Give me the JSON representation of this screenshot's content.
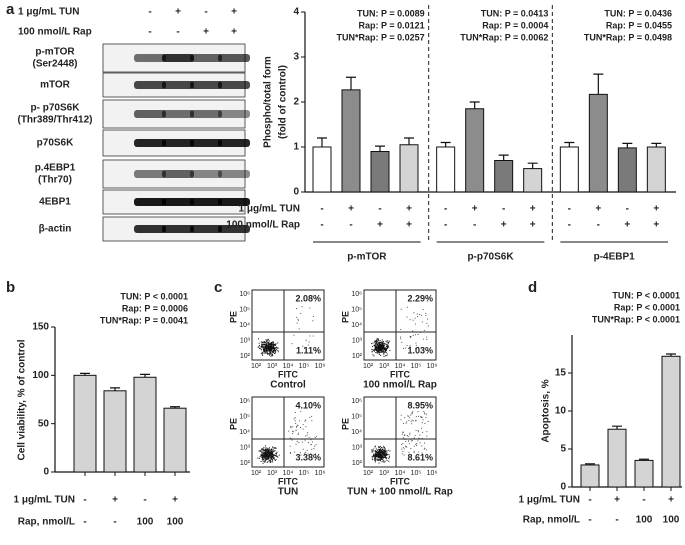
{
  "blot": {
    "label": "a",
    "conditions": [
      {
        "label": "1 μg/mL TUN",
        "marks": [
          "-",
          "+",
          "-",
          "+"
        ]
      },
      {
        "label": "100 nmol/L Rap",
        "marks": [
          "-",
          "-",
          "+",
          "+"
        ]
      }
    ],
    "rows": [
      [
        "p-mTOR",
        "(Ser2448)"
      ],
      [
        "mTOR"
      ],
      [
        "p-  p70S6K",
        "(Thr389/Thr412)"
      ],
      [
        "p70S6K"
      ],
      [
        "p.4EBP1",
        "(Thr70)"
      ],
      [
        "4EBP1"
      ],
      [
        "β-actin"
      ]
    ]
  },
  "flow": {
    "label": "c",
    "x_label": "FITC",
    "y_label": "PE",
    "ticks": [
      "10²",
      "10³",
      "10⁴",
      "10⁵",
      "10⁶"
    ],
    "plots": [
      {
        "caption": "Control",
        "upper_right": "2.08%",
        "lower_right": "1.11%"
      },
      {
        "caption": "100 nmol/L Rap",
        "upper_right": "2.29%",
        "lower_right": "1.03%"
      },
      {
        "caption": "TUN",
        "upper_right": "4.10%",
        "lower_right": "3.38%"
      },
      {
        "caption": "TUN + 100 nmol/L Rap",
        "upper_right": "8.95%",
        "lower_right": "8.61%"
      }
    ]
  },
  "chart_data": [
    {
      "type": "grouped_bar",
      "ylabel": [
        "Phospho/total form",
        "(fold of control)"
      ],
      "ylim": [
        0,
        4
      ],
      "yticks": [
        0,
        1,
        2,
        3,
        4
      ],
      "categories": [
        "p-mTOR",
        "p-p70S6K",
        "p-4EBP1"
      ],
      "series": [
        {
          "color": "#ffffff",
          "values": [
            1.0,
            1.0,
            1.0
          ],
          "errors": [
            0.2,
            0.1,
            0.1
          ]
        },
        {
          "color": "#8c8c8c",
          "values": [
            2.27,
            1.85,
            2.17
          ],
          "errors": [
            0.28,
            0.15,
            0.45
          ]
        },
        {
          "color": "#7a7a7a",
          "values": [
            0.9,
            0.7,
            0.98
          ],
          "errors": [
            0.12,
            0.12,
            0.1
          ]
        },
        {
          "color": "#d4d4d4",
          "values": [
            1.05,
            0.52,
            1.0
          ],
          "errors": [
            0.15,
            0.12,
            0.08
          ]
        }
      ],
      "conditions": [
        {
          "label": "1 μg/mL TUN",
          "marks": [
            "-",
            "+",
            "-",
            "+"
          ]
        },
        {
          "label": "100 nmol/L Rap",
          "marks": [
            "-",
            "-",
            "+",
            "+"
          ]
        }
      ],
      "annotations": [
        [
          "TUN: P = 0.0089",
          "Rap: P = 0.0121",
          "TUN*Rap: P = 0.0257"
        ],
        [
          "TUN: P = 0.0413",
          "Rap: P = 0.0004",
          "TUN*Rap: P = 0.0062"
        ],
        [
          "TUN: P = 0.0436",
          "Rap: P = 0.0455",
          "TUN*Rap: P = 0.0498"
        ]
      ]
    },
    {
      "type": "bar",
      "panel": "b",
      "ylabel": [
        "Cell viability, % of control"
      ],
      "ylim": [
        0,
        150
      ],
      "yticks": [
        0,
        50,
        100,
        150
      ],
      "color": "#d4d4d4",
      "values": [
        100,
        84,
        98,
        66
      ],
      "errors": [
        2,
        3,
        3,
        1.5
      ],
      "conditions": [
        {
          "label": "1 μg/mL TUN",
          "marks": [
            "-",
            "+",
            "-",
            "+"
          ]
        },
        {
          "label": "Rap, nmol/L",
          "marks": [
            "-",
            "-",
            "100",
            "100"
          ]
        }
      ],
      "annotations": [
        "TUN: P < 0.0001",
        "Rap: P = 0.0006",
        "TUN*Rap: P = 0.0041"
      ]
    },
    {
      "type": "bar",
      "panel": "d",
      "ylabel": [
        "Apoptosis, %"
      ],
      "ylim": [
        0,
        20
      ],
      "yticks": [
        0,
        5,
        10,
        15
      ],
      "color": "#d4d4d4",
      "values": [
        2.9,
        7.6,
        3.5,
        17.2
      ],
      "errors": [
        0.15,
        0.4,
        0.15,
        0.3
      ],
      "conditions": [
        {
          "label": "1 μg/mL TUN",
          "marks": [
            "-",
            "+",
            "-",
            "+"
          ]
        },
        {
          "label": "Rap, nmol/L",
          "marks": [
            "-",
            "-",
            "100",
            "100"
          ]
        }
      ],
      "annotations": [
        "TUN: P < 0.0001",
        "Rap: P < 0.0001",
        "TUN*Rap: P < 0.0001"
      ]
    }
  ]
}
